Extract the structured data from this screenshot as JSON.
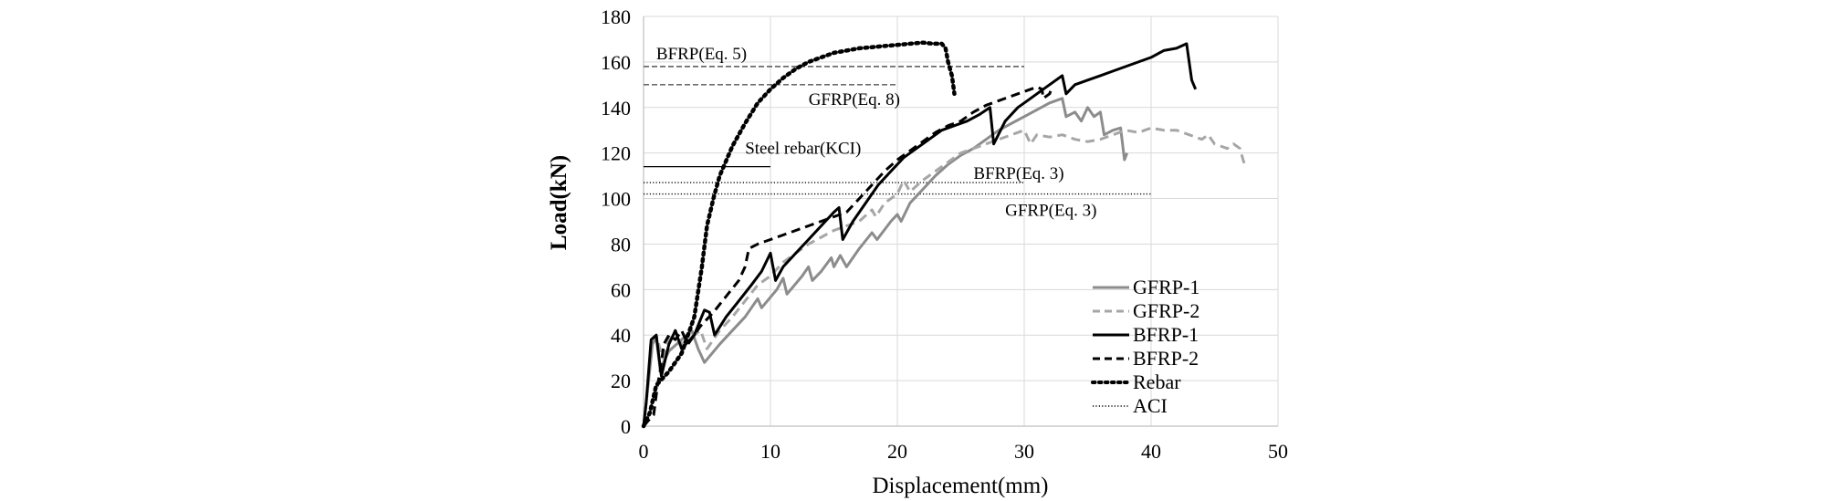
{
  "chart_data": {
    "type": "line",
    "title": "",
    "xlabel": "Displacement(mm)",
    "ylabel": "Load(kN)",
    "xlim": [
      0,
      50
    ],
    "ylim": [
      0,
      180
    ],
    "xticks": [
      0,
      10,
      20,
      30,
      40,
      50
    ],
    "yticks": [
      0,
      20,
      40,
      60,
      80,
      100,
      120,
      140,
      160,
      180
    ],
    "grid": true,
    "legend_position": "bottom-right",
    "series": [
      {
        "name": "GFRP-1",
        "color": "#8c8c8c",
        "style": "solid",
        "points": [
          [
            0,
            0
          ],
          [
            0.4,
            20
          ],
          [
            0.7,
            36
          ],
          [
            1.0,
            39
          ],
          [
            1.3,
            25
          ],
          [
            2,
            33
          ],
          [
            3,
            38
          ],
          [
            3.8,
            42
          ],
          [
            4.3,
            34
          ],
          [
            4.8,
            28
          ],
          [
            6,
            36
          ],
          [
            7,
            42
          ],
          [
            8,
            48
          ],
          [
            9,
            56
          ],
          [
            9.3,
            52
          ],
          [
            10.5,
            60
          ],
          [
            11,
            65
          ],
          [
            11.3,
            58
          ],
          [
            12.5,
            66
          ],
          [
            13,
            70
          ],
          [
            13.3,
            64
          ],
          [
            14,
            68
          ],
          [
            14.8,
            74
          ],
          [
            15,
            70
          ],
          [
            15.5,
            75
          ],
          [
            16,
            70
          ],
          [
            17,
            78
          ],
          [
            18,
            85
          ],
          [
            18.4,
            82
          ],
          [
            19.5,
            90
          ],
          [
            20,
            93
          ],
          [
            20.3,
            90
          ],
          [
            21,
            98
          ],
          [
            22,
            104
          ],
          [
            23,
            110
          ],
          [
            24,
            115
          ],
          [
            25,
            119
          ],
          [
            26,
            122
          ],
          [
            27,
            126
          ],
          [
            28,
            130
          ],
          [
            29,
            133
          ],
          [
            30,
            136
          ],
          [
            31,
            139
          ],
          [
            32,
            142
          ],
          [
            33,
            144
          ],
          [
            33.3,
            136
          ],
          [
            34,
            138
          ],
          [
            34.5,
            134
          ],
          [
            35,
            140
          ],
          [
            35.5,
            136
          ],
          [
            36,
            138
          ],
          [
            36.3,
            128
          ],
          [
            37,
            130
          ],
          [
            37.6,
            131
          ],
          [
            37.9,
            117
          ],
          [
            38.1,
            120
          ]
        ]
      },
      {
        "name": "GFRP-2",
        "color": "#a6a6a6",
        "style": "dashed",
        "points": [
          [
            0,
            0
          ],
          [
            0.3,
            15
          ],
          [
            0.6,
            38
          ],
          [
            1.0,
            40
          ],
          [
            1.5,
            30
          ],
          [
            2,
            38
          ],
          [
            2.5,
            42
          ],
          [
            3,
            36
          ],
          [
            4,
            40
          ],
          [
            4.5,
            42
          ],
          [
            5,
            34
          ],
          [
            6,
            42
          ],
          [
            7,
            48
          ],
          [
            8,
            55
          ],
          [
            9,
            62
          ],
          [
            10,
            66
          ],
          [
            11,
            72
          ],
          [
            12,
            76
          ],
          [
            13,
            80
          ],
          [
            14,
            83
          ],
          [
            15,
            86
          ],
          [
            16,
            88
          ],
          [
            17,
            90
          ],
          [
            18,
            95
          ],
          [
            18.3,
            92
          ],
          [
            19,
            98
          ],
          [
            20,
            102
          ],
          [
            20.5,
            108
          ],
          [
            21,
            103
          ],
          [
            22,
            108
          ],
          [
            23,
            112
          ],
          [
            24,
            116
          ],
          [
            25,
            120
          ],
          [
            26,
            122
          ],
          [
            27,
            124
          ],
          [
            28,
            126
          ],
          [
            29,
            128
          ],
          [
            30,
            130
          ],
          [
            30.5,
            124
          ],
          [
            31,
            128
          ],
          [
            32,
            127
          ],
          [
            33,
            128
          ],
          [
            34,
            126
          ],
          [
            35,
            125
          ],
          [
            36,
            126
          ],
          [
            37,
            128
          ],
          [
            38,
            130
          ],
          [
            39,
            129
          ],
          [
            40,
            131
          ],
          [
            41,
            130
          ],
          [
            42,
            130
          ],
          [
            43,
            128
          ],
          [
            44,
            126
          ],
          [
            44.5,
            128
          ],
          [
            45,
            124
          ],
          [
            46,
            122
          ],
          [
            46.5,
            124
          ],
          [
            47,
            122
          ],
          [
            47.3,
            116
          ],
          [
            47.5,
            118
          ]
        ]
      },
      {
        "name": "BFRP-1",
        "color": "#000000",
        "style": "solid",
        "points": [
          [
            0,
            0
          ],
          [
            0.2,
            10
          ],
          [
            0.6,
            38
          ],
          [
            1.0,
            40
          ],
          [
            1.4,
            22
          ],
          [
            2,
            36
          ],
          [
            2.5,
            42
          ],
          [
            3,
            34
          ],
          [
            4,
            40
          ],
          [
            4.5,
            47
          ],
          [
            4.8,
            51
          ],
          [
            5.2,
            50
          ],
          [
            5.6,
            40
          ],
          [
            6.5,
            48
          ],
          [
            7.5,
            55
          ],
          [
            8.5,
            62
          ],
          [
            9.3,
            68
          ],
          [
            10,
            76
          ],
          [
            10.4,
            64
          ],
          [
            11,
            70
          ],
          [
            12,
            76
          ],
          [
            13,
            82
          ],
          [
            14,
            88
          ],
          [
            15,
            94
          ],
          [
            15.4,
            96
          ],
          [
            15.7,
            82
          ],
          [
            16.5,
            90
          ],
          [
            17.5,
            98
          ],
          [
            18.5,
            106
          ],
          [
            19.5,
            112
          ],
          [
            20.5,
            118
          ],
          [
            21.5,
            122
          ],
          [
            22.5,
            126
          ],
          [
            23.5,
            130
          ],
          [
            24.5,
            132
          ],
          [
            25.5,
            134
          ],
          [
            26.5,
            137
          ],
          [
            27.3,
            140
          ],
          [
            27.6,
            124
          ],
          [
            28.5,
            134
          ],
          [
            29.5,
            140
          ],
          [
            30.5,
            144
          ],
          [
            31.5,
            148
          ],
          [
            32.5,
            152
          ],
          [
            33,
            154
          ],
          [
            33.3,
            146
          ],
          [
            34,
            150
          ],
          [
            35,
            152
          ],
          [
            36,
            154
          ],
          [
            37,
            156
          ],
          [
            38,
            158
          ],
          [
            39,
            160
          ],
          [
            40,
            162
          ],
          [
            41,
            165
          ],
          [
            42,
            166
          ],
          [
            42.8,
            168
          ],
          [
            43.2,
            152
          ],
          [
            43.5,
            148
          ]
        ]
      },
      {
        "name": "BFRP-2",
        "color": "#000000",
        "style": "dashed",
        "points": [
          [
            0,
            0
          ],
          [
            0.3,
            2
          ],
          [
            0.8,
            5
          ],
          [
            1.1,
            18
          ],
          [
            1.3,
            24
          ],
          [
            1.6,
            36
          ],
          [
            2,
            40
          ],
          [
            2.5,
            38
          ],
          [
            3,
            42
          ],
          [
            3.5,
            36
          ],
          [
            4.5,
            44
          ],
          [
            5.5,
            50
          ],
          [
            6.5,
            57
          ],
          [
            7.5,
            64
          ],
          [
            8,
            70
          ],
          [
            8.3,
            78
          ],
          [
            9,
            80
          ],
          [
            10,
            82
          ],
          [
            11,
            84
          ],
          [
            12,
            86
          ],
          [
            13,
            88
          ],
          [
            14,
            90
          ],
          [
            15,
            92
          ],
          [
            16,
            94
          ],
          [
            17,
            100
          ],
          [
            18,
            106
          ],
          [
            19,
            112
          ],
          [
            20,
            117
          ],
          [
            21,
            121
          ],
          [
            22,
            125
          ],
          [
            23,
            129
          ],
          [
            24,
            132
          ],
          [
            25,
            134
          ],
          [
            26,
            138
          ],
          [
            27,
            141
          ],
          [
            28,
            143
          ],
          [
            29,
            145
          ],
          [
            30,
            147
          ],
          [
            30.5,
            148
          ],
          [
            31,
            149
          ],
          [
            31.4,
            148
          ],
          [
            31.5,
            144
          ],
          [
            32,
            146
          ],
          [
            32.2,
            149
          ]
        ]
      },
      {
        "name": "Rebar",
        "color": "#000000",
        "style": "dotted",
        "points": [
          [
            0,
            0
          ],
          [
            0.5,
            6
          ],
          [
            1,
            18
          ],
          [
            2,
            24
          ],
          [
            3,
            32
          ],
          [
            4,
            48
          ],
          [
            4.6,
            70
          ],
          [
            5,
            88
          ],
          [
            5.5,
            100
          ],
          [
            6,
            110
          ],
          [
            7,
            123
          ],
          [
            8,
            133
          ],
          [
            9,
            142
          ],
          [
            10,
            148
          ],
          [
            11,
            153
          ],
          [
            12,
            157
          ],
          [
            13,
            160
          ],
          [
            14,
            162
          ],
          [
            15,
            164
          ],
          [
            16,
            165
          ],
          [
            17,
            166
          ],
          [
            18,
            166.5
          ],
          [
            19,
            167
          ],
          [
            20,
            167.5
          ],
          [
            21,
            168
          ],
          [
            22,
            168.5
          ],
          [
            22.8,
            168
          ],
          [
            23.5,
            168
          ],
          [
            23.8,
            166
          ],
          [
            24,
            160
          ],
          [
            24.3,
            154
          ],
          [
            24.5,
            146
          ]
        ]
      },
      {
        "name": "ACI",
        "color": "#000000",
        "style": "fine-dotted",
        "points": []
      }
    ],
    "reference_lines": [
      {
        "label": "BFRP(Eq. 5)",
        "y": 158,
        "x_end": 30,
        "style": "dashed",
        "color": "#555555"
      },
      {
        "label": "GFRP(Eq. 8)",
        "y": 150,
        "x_end": 20,
        "style": "dashed",
        "color": "#555555"
      },
      {
        "label": "Steel rebar(KCI)",
        "y": 114,
        "x_end": 10,
        "style": "solid",
        "color": "#000000"
      },
      {
        "label": "BFRP(Eq. 3)",
        "y": 107,
        "x_end": 30,
        "style": "fine-dotted",
        "color": "#000000"
      },
      {
        "label": "GFRP(Eq. 3)",
        "y": 102,
        "x_end": 40,
        "style": "fine-dotted",
        "color": "#000000"
      }
    ]
  }
}
